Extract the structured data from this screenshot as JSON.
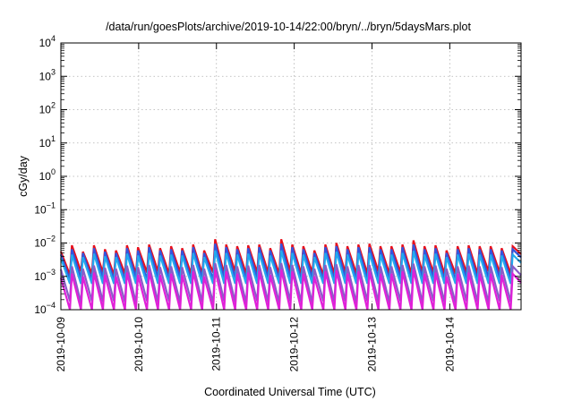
{
  "chart_data": {
    "type": "line",
    "title": "/data/run/goesPlots/archive/2019-10-14/22:00/bryn/../bryn/5daysMars.plot",
    "xlabel": "Coordinated Universal Time (UTC)",
    "ylabel": "cGy/day",
    "xlim": [
      "2019-10-09",
      "2019-10-14 22:00"
    ],
    "ylim": [
      0.0001,
      10000
    ],
    "yscale": "log",
    "grid": true,
    "legend": "none",
    "x_ticks": [
      "2019-10-09",
      "2019-10-10",
      "2019-10-11",
      "2019-10-12",
      "2019-10-13",
      "2019-10-14"
    ],
    "y_tick_exponents": [
      -4,
      -3,
      -2,
      -1,
      0,
      1,
      2,
      3,
      4
    ],
    "y_tick_base": "10",
    "sawtooth_period_hours": 3.4,
    "series": [
      {
        "color": "#e8101c",
        "peaks": [
          0.0055,
          0.0085,
          0.0055,
          0.0085,
          0.0065,
          0.006,
          0.0085,
          0.0075,
          0.009,
          0.007,
          0.008,
          0.007,
          0.009,
          0.006,
          0.013,
          0.009,
          0.008,
          0.0085,
          0.009,
          0.007,
          0.013,
          0.009,
          0.008,
          0.006,
          0.009,
          0.01,
          0.008,
          0.009,
          0.0095,
          0.008,
          0.008,
          0.009,
          0.012,
          0.008,
          0.0085,
          0.006,
          0.008,
          0.0085,
          0.008,
          0.008,
          0.007,
          0.008,
          0.012,
          0.01
        ],
        "troughs": [
          0.0011,
          0.0014,
          0.0012,
          0.0013,
          0.0011,
          0.0012,
          0.0012,
          0.0013,
          0.0014,
          0.0012,
          0.0013,
          0.0012,
          0.0012,
          0.0013,
          0.0012,
          0.0014,
          0.0012,
          0.0013,
          0.0013,
          0.0012,
          0.0014,
          0.0012,
          0.0013,
          0.0011,
          0.0012,
          0.0013,
          0.0012,
          0.0012,
          0.0014,
          0.0012,
          0.0013,
          0.0012,
          0.0013,
          0.0013,
          0.0012,
          0.0012,
          0.0013,
          0.0012,
          0.0014,
          0.0013,
          0.0012,
          0.0013,
          0.0012,
          0.0013
        ]
      },
      {
        "color": "#3355dd",
        "peaks": [
          0.0045,
          0.0065,
          0.005,
          0.007,
          0.0055,
          0.005,
          0.007,
          0.006,
          0.0075,
          0.006,
          0.0065,
          0.006,
          0.0075,
          0.005,
          0.0095,
          0.0075,
          0.0065,
          0.007,
          0.0075,
          0.006,
          0.0095,
          0.0075,
          0.0065,
          0.005,
          0.0075,
          0.008,
          0.0065,
          0.0075,
          0.0075,
          0.0065,
          0.0065,
          0.0075,
          0.009,
          0.0065,
          0.007,
          0.005,
          0.0065,
          0.007,
          0.0065,
          0.0065,
          0.006,
          0.0065,
          0.009,
          0.008
        ],
        "troughs": [
          0.0008,
          0.0009,
          0.0008,
          0.0009,
          0.0008,
          0.0008,
          0.0009,
          0.0008,
          0.0009,
          0.0008,
          0.0009,
          0.0008,
          0.0009,
          0.0008,
          0.0009,
          0.0009,
          0.0008,
          0.0009,
          0.0009,
          0.0008,
          0.0009,
          0.0008,
          0.0009,
          0.0008,
          0.0008,
          0.0009,
          0.0008,
          0.0008,
          0.0009,
          0.0008,
          0.0009,
          0.0008,
          0.0009,
          0.0009,
          0.0008,
          0.0008,
          0.0009,
          0.0008,
          0.0009,
          0.0009,
          0.0008,
          0.0009,
          0.0008,
          0.0009
        ]
      },
      {
        "color": "#22aaee",
        "peaks": [
          0.0035,
          0.0045,
          0.0038,
          0.0048,
          0.004,
          0.0038,
          0.0048,
          0.0042,
          0.005,
          0.0042,
          0.0045,
          0.0042,
          0.005,
          0.0038,
          0.006,
          0.005,
          0.0045,
          0.0048,
          0.005,
          0.0042,
          0.006,
          0.005,
          0.0045,
          0.0038,
          0.005,
          0.0055,
          0.0045,
          0.005,
          0.005,
          0.0045,
          0.0045,
          0.005,
          0.0058,
          0.0045,
          0.0048,
          0.0038,
          0.0045,
          0.0048,
          0.0045,
          0.0045,
          0.0042,
          0.0045,
          0.0058,
          0.0055
        ],
        "troughs": [
          0.0006,
          0.0006,
          0.0006,
          0.0006,
          0.0006,
          0.0006,
          0.0006,
          0.0006,
          0.0006,
          0.0006,
          0.0006,
          0.0006,
          0.0006,
          0.0006,
          0.0006,
          0.0006,
          0.0006,
          0.0006,
          0.0006,
          0.0006,
          0.0006,
          0.0006,
          0.0006,
          0.0006,
          0.0006,
          0.0006,
          0.0006,
          0.0006,
          0.0006,
          0.0006,
          0.0006,
          0.0006,
          0.0006,
          0.0006,
          0.0006,
          0.0006,
          0.0006,
          0.0006,
          0.0006,
          0.0006,
          0.0006,
          0.0006,
          0.0006,
          0.0006
        ]
      },
      {
        "color": "#8a5cc8",
        "peaks": [
          0.0016,
          0.002,
          0.0017,
          0.0021,
          0.0018,
          0.0017,
          0.0021,
          0.0019,
          0.0022,
          0.0019,
          0.002,
          0.0019,
          0.0022,
          0.0017,
          0.0025,
          0.0022,
          0.002,
          0.0021,
          0.0022,
          0.0019,
          0.0025,
          0.0022,
          0.002,
          0.0017,
          0.0022,
          0.0023,
          0.002,
          0.0022,
          0.0022,
          0.002,
          0.002,
          0.0022,
          0.0024,
          0.002,
          0.0021,
          0.0017,
          0.002,
          0.0021,
          0.002,
          0.002,
          0.0019,
          0.002,
          0.0024,
          0.0023
        ],
        "troughs": [
          0.00018,
          0.00016,
          0.00018,
          0.00017,
          0.00018,
          0.00017,
          0.00016,
          0.00018,
          0.00017,
          0.00018,
          0.00016,
          0.00018,
          0.00017,
          0.00016,
          0.00018,
          0.00017,
          0.00016,
          0.00018,
          0.00017,
          0.00016,
          0.00018,
          0.00017,
          0.00016,
          0.00018,
          0.00017,
          0.00018,
          0.00016,
          0.00018,
          0.00017,
          0.00016,
          0.00018,
          0.00017,
          0.00016,
          0.00018,
          0.00017,
          0.00016,
          0.00018,
          0.00017,
          0.00016,
          0.00018,
          0.00017,
          0.00016,
          0.00018,
          0.00017
        ]
      },
      {
        "color": "#e020d8",
        "peaks": [
          0.0009,
          0.0012,
          0.001,
          0.0013,
          0.0011,
          0.001,
          0.0013,
          0.0011,
          0.0014,
          0.0011,
          0.0012,
          0.0011,
          0.0014,
          0.001,
          0.0016,
          0.0014,
          0.0012,
          0.0013,
          0.0014,
          0.0011,
          0.0016,
          0.0014,
          0.0012,
          0.001,
          0.0014,
          0.0015,
          0.0012,
          0.0014,
          0.0014,
          0.0012,
          0.0012,
          0.0014,
          0.0016,
          0.0012,
          0.0013,
          0.001,
          0.0012,
          0.0013,
          0.0012,
          0.0012,
          0.0011,
          0.0012,
          0.0016,
          0.0015
        ],
        "troughs": [
          0.0001,
          0.0001,
          0.0001,
          0.0001,
          0.0001,
          0.0001,
          0.0001,
          0.0001,
          0.0001,
          0.0001,
          0.0001,
          0.0001,
          0.0001,
          0.0001,
          0.0001,
          0.0001,
          0.0001,
          0.0001,
          0.0001,
          0.0001,
          0.0001,
          0.0001,
          0.0001,
          0.0001,
          0.0001,
          0.0001,
          0.0001,
          0.0001,
          0.0001,
          0.0001,
          0.0001,
          0.0001,
          0.0001,
          0.0001,
          0.0001,
          0.0001,
          0.0001,
          0.0001,
          0.0001,
          0.0001,
          0.0001,
          0.0001,
          0.0001,
          0.0001
        ]
      }
    ]
  }
}
